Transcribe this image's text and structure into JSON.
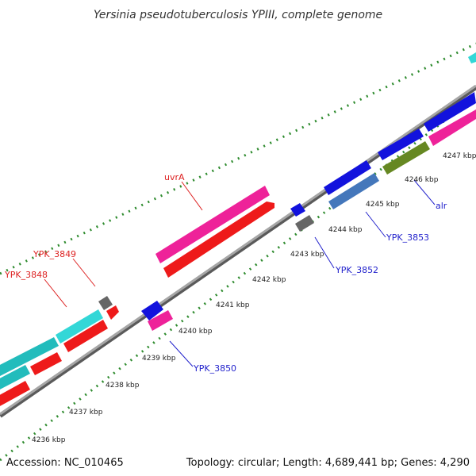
{
  "title": "Yersinia pseudotuberculosis YPIII, complete genome",
  "footer": {
    "accession": "Accession: NC_010465",
    "summary": "Topology: circular; Length: 4,689,441 bp; Genes: 4,290"
  },
  "colors": {
    "backbone": "#8a8a8a",
    "tick_dot": "#2e8b2e",
    "label_forward": "#dd2222",
    "label_reverse": "#2222cc"
  },
  "ticks": [
    "4236 kbp",
    "4237 kbp",
    "4238 kbp",
    "4239 kbp",
    "4240 kbp",
    "4241 kbp",
    "4242 kbp",
    "4243 kbp",
    "4244 kbp",
    "4245 kbp",
    "4246 kbp",
    "4247 kbp"
  ],
  "gene_labels": [
    {
      "text": "uvrA",
      "strand": "forward"
    },
    {
      "text": "YPK_3849",
      "strand": "forward"
    },
    {
      "text": "YPK_3848",
      "strand": "forward"
    },
    {
      "text": "YPK_3850",
      "strand": "reverse"
    },
    {
      "text": "YPK_3852",
      "strand": "reverse"
    },
    {
      "text": "YPK_3853",
      "strand": "reverse"
    },
    {
      "text": "alr",
      "strand": "reverse"
    }
  ]
}
